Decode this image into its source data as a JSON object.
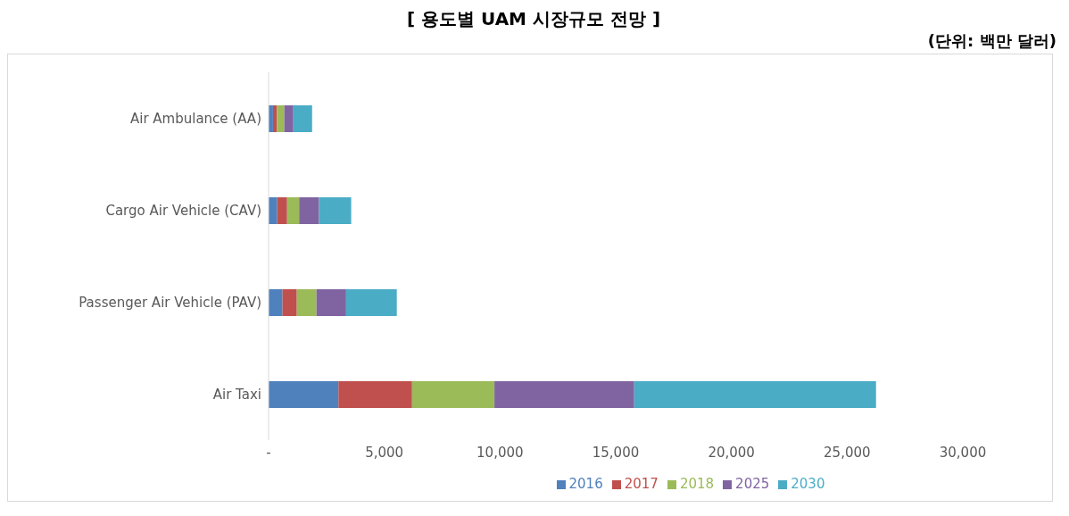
{
  "chart_data": {
    "type": "bar",
    "orientation": "horizontal",
    "stacked": true,
    "title": "[ 용도별 UAM 시장규모 전망 ]",
    "subtitle": "(단위: 백만 달러)",
    "categories": [
      "Air Ambulance (AA)",
      "Cargo Air Vehicle (CAV)",
      "Passenger Air Vehicle (PAV)",
      "Air Taxi"
    ],
    "series": [
      {
        "name": "2016",
        "color": "#4f81bd",
        "values": [
          190,
          370,
          600,
          3020
        ]
      },
      {
        "name": "2017",
        "color": "#c0504d",
        "values": [
          170,
          430,
          620,
          3180
        ]
      },
      {
        "name": "2018",
        "color": "#9bbb59",
        "values": [
          320,
          520,
          850,
          3560
        ]
      },
      {
        "name": "2025",
        "color": "#8064a2",
        "values": [
          390,
          860,
          1280,
          6040
        ]
      },
      {
        "name": "2030",
        "color": "#4bacc6",
        "values": [
          810,
          1390,
          2190,
          10450
        ]
      }
    ],
    "xlim": [
      0,
      30000
    ],
    "xticks": [
      {
        "value": 0,
        "label": "-"
      },
      {
        "value": 5000,
        "label": "5,000"
      },
      {
        "value": 10000,
        "label": "10,000"
      },
      {
        "value": 15000,
        "label": "15,000"
      },
      {
        "value": 20000,
        "label": "20,000"
      },
      {
        "value": 25000,
        "label": "25,000"
      },
      {
        "value": 30000,
        "label": "30,000"
      }
    ],
    "grid": false,
    "legend": "bottom"
  }
}
